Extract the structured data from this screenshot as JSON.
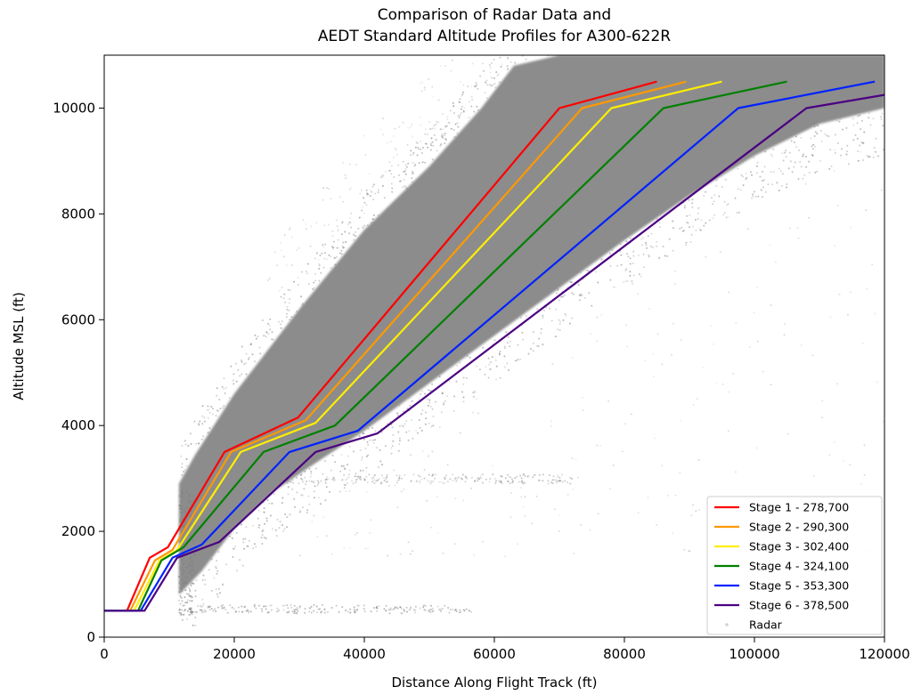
{
  "chart_data": {
    "type": "line",
    "title_line1": "Comparison of Radar Data and",
    "title_line2": "AEDT Standard Altitude Profiles for A300-622R",
    "xlabel": "Distance Along Flight Track (ft)",
    "ylabel": "Altitude MSL (ft)",
    "xlim": [
      0,
      120000
    ],
    "ylim": [
      0,
      11000
    ],
    "xticks": [
      0,
      20000,
      40000,
      60000,
      80000,
      100000,
      120000
    ],
    "yticks": [
      0,
      2000,
      4000,
      6000,
      8000,
      10000
    ],
    "grid": false,
    "legend_position": "lower-right",
    "series": [
      {
        "name": "Stage 1 - 278,700",
        "color": "#ff0000",
        "x": [
          0,
          3500,
          7000,
          9800,
          18500,
          29800,
          70000,
          85000
        ],
        "y": [
          500,
          500,
          1500,
          1700,
          3500,
          4150,
          10000,
          10500
        ]
      },
      {
        "name": "Stage 2 - 290,300",
        "color": "#ff9900",
        "x": [
          0,
          4000,
          7800,
          10500,
          19500,
          31000,
          73500,
          89500
        ],
        "y": [
          500,
          500,
          1450,
          1650,
          3500,
          4100,
          10000,
          10500
        ]
      },
      {
        "name": "Stage 3 - 302,400",
        "color": "#ffee00",
        "x": [
          0,
          4600,
          8500,
          11200,
          21000,
          32500,
          78000,
          95000
        ],
        "y": [
          500,
          500,
          1450,
          1650,
          3500,
          4050,
          10000,
          10500
        ]
      },
      {
        "name": "Stage 4 - 324,100",
        "color": "#008000",
        "x": [
          0,
          5200,
          8800,
          12200,
          24500,
          35500,
          86000,
          105000
        ],
        "y": [
          500,
          500,
          1450,
          1700,
          3500,
          4000,
          10000,
          10500
        ]
      },
      {
        "name": "Stage 5 - 353,300",
        "color": "#0022ff",
        "x": [
          0,
          5600,
          10500,
          15000,
          28500,
          39000,
          97500,
          118500
        ],
        "y": [
          500,
          500,
          1500,
          1750,
          3500,
          3900,
          10000,
          10500
        ]
      },
      {
        "name": "Stage 6 - 378,500",
        "color": "#4b0082",
        "x": [
          0,
          6200,
          11200,
          17700,
          32500,
          42000,
          108000,
          120000
        ],
        "y": [
          500,
          500,
          1500,
          1800,
          3500,
          3850,
          10000,
          10250
        ]
      }
    ],
    "radar": {
      "name": "Radar",
      "color": "#7f7f7f"
    }
  }
}
